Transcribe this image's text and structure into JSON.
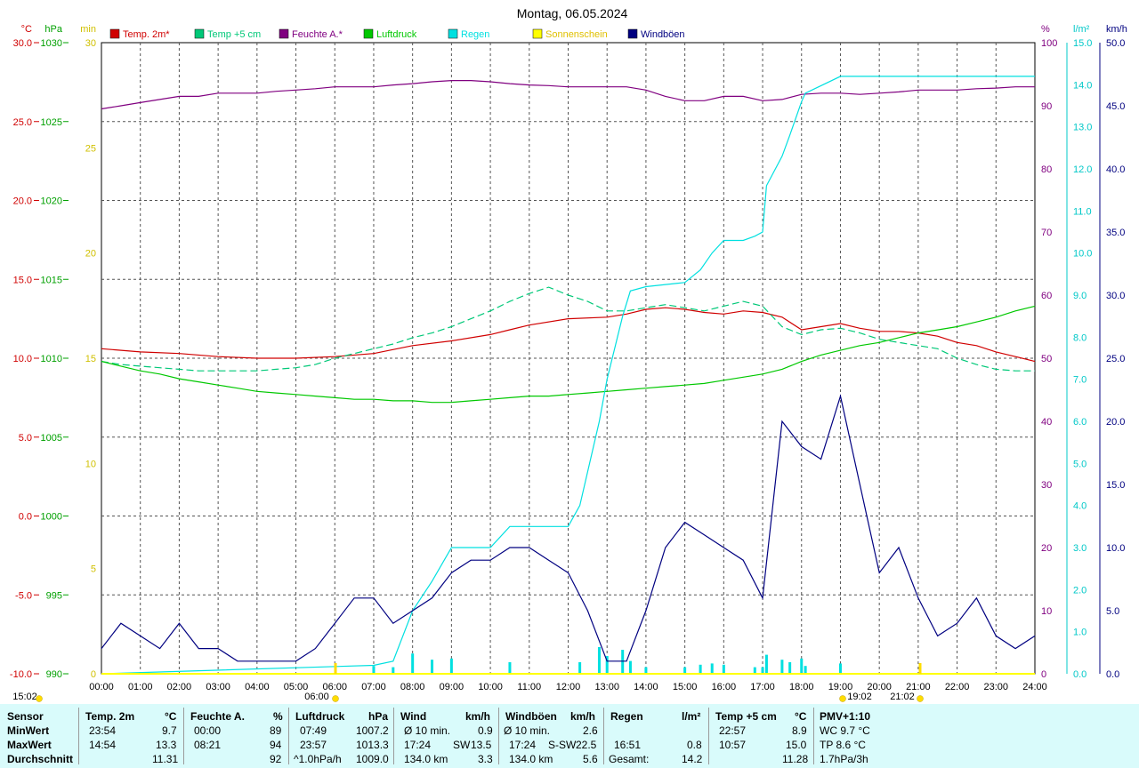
{
  "chart_data": {
    "type": "line",
    "title": "Montag, 06.05.2024",
    "x_ticks": [
      "00:00",
      "01:00",
      "02:00",
      "03:00",
      "04:00",
      "05:00",
      "06:00",
      "07:00",
      "08:00",
      "09:00",
      "10:00",
      "11:00",
      "12:00",
      "13:00",
      "14:00",
      "15:00",
      "16:00",
      "17:00",
      "18:00",
      "19:00",
      "20:00",
      "21:00",
      "22:00",
      "23:00",
      "24:00"
    ],
    "xlim": [
      0,
      24
    ],
    "grid": true,
    "legend_placement": "top",
    "axes": {
      "temp": {
        "unit": "°C",
        "color": "#d00000",
        "ylim": [
          -10,
          30
        ],
        "ticks": [
          "30.0",
          "25.0",
          "20.0",
          "15.0",
          "10.0",
          "5.0",
          "0.0",
          "-5.0",
          "-10.0"
        ]
      },
      "pressure": {
        "unit": "hPa",
        "color": "#00a000",
        "ylim": [
          990,
          1030
        ],
        "ticks": [
          "1030",
          "1025",
          "1020",
          "1015",
          "1010",
          "1005",
          "1000",
          "995",
          "990"
        ]
      },
      "sunshine": {
        "unit": "min",
        "color": "#d0c000",
        "ylim": [
          0,
          30
        ],
        "ticks": [
          "30",
          "25",
          "20",
          "15",
          "10",
          "5",
          "0"
        ]
      },
      "humidity": {
        "unit": "%",
        "color": "#800080",
        "ylim": [
          0,
          100
        ],
        "ticks": [
          "100",
          "90",
          "80",
          "70",
          "60",
          "50",
          "40",
          "30",
          "20",
          "10",
          "0"
        ]
      },
      "rain": {
        "unit": "l/m²",
        "color": "#00c8c8",
        "ylim": [
          0,
          15
        ],
        "ticks": [
          "15.0",
          "14.0",
          "13.0",
          "12.0",
          "11.0",
          "10.0",
          "9.0",
          "8.0",
          "7.0",
          "6.0",
          "5.0",
          "4.0",
          "3.0",
          "2.0",
          "1.0",
          "0.0"
        ]
      },
      "wind": {
        "unit": "km/h",
        "color": "#000080",
        "ylim": [
          0,
          50
        ],
        "ticks": [
          "50.0",
          "45.0",
          "40.0",
          "35.0",
          "30.0",
          "25.0",
          "20.0",
          "15.0",
          "10.0",
          "5.0",
          "0.0"
        ]
      }
    },
    "legend": [
      {
        "label": "Temp. 2m*",
        "color": "#d00000"
      },
      {
        "label": "Temp +5 cm",
        "color": "#00c878"
      },
      {
        "label": "Feuchte A.*",
        "color": "#800080"
      },
      {
        "label": "Luftdruck",
        "color": "#00c800"
      },
      {
        "label": "Regen",
        "color": "#00e0e0"
      },
      {
        "label": "Sonnenschein",
        "color": "#ffff00"
      },
      {
        "label": "Windböen",
        "color": "#000080"
      }
    ],
    "series": [
      {
        "name": "Temp. 2m*",
        "axis": "temp",
        "color": "#d00000",
        "x": [
          0,
          1,
          2,
          3,
          4,
          5,
          6,
          7,
          8,
          9,
          10,
          10.5,
          11,
          12,
          13,
          13.5,
          14,
          14.5,
          15,
          15.5,
          16,
          16.5,
          17,
          17.5,
          18,
          18.5,
          19,
          19.5,
          20,
          20.5,
          21,
          21.5,
          22,
          22.5,
          23,
          23.5,
          24
        ],
        "y": [
          10.6,
          10.4,
          10.3,
          10.1,
          10.0,
          10.0,
          10.1,
          10.3,
          10.8,
          11.1,
          11.5,
          11.8,
          12.1,
          12.5,
          12.6,
          12.8,
          13.1,
          13.2,
          13.1,
          12.9,
          12.8,
          13.0,
          12.9,
          12.6,
          11.8,
          12.0,
          12.2,
          11.9,
          11.7,
          11.7,
          11.6,
          11.4,
          11.0,
          10.8,
          10.4,
          10.1,
          9.8
        ]
      },
      {
        "name": "Temp +5 cm",
        "axis": "temp",
        "color": "#00c878",
        "x": [
          0,
          0.5,
          1,
          1.5,
          2,
          2.5,
          3,
          3.5,
          4,
          4.5,
          5,
          5.5,
          6,
          6.5,
          7,
          7.5,
          8,
          8.5,
          9,
          9.5,
          10,
          10.5,
          11,
          11.5,
          12,
          12.5,
          13,
          13.5,
          14,
          14.5,
          15,
          15.5,
          16,
          16.5,
          17,
          17.5,
          18,
          18.5,
          19,
          19.5,
          20,
          20.5,
          21,
          21.5,
          22,
          22.5,
          23,
          23.5,
          24
        ],
        "y": [
          9.8,
          9.6,
          9.5,
          9.4,
          9.3,
          9.2,
          9.2,
          9.2,
          9.2,
          9.3,
          9.4,
          9.6,
          10.0,
          10.3,
          10.6,
          10.9,
          11.3,
          11.6,
          12.0,
          12.5,
          13.0,
          13.6,
          14.1,
          14.5,
          14.0,
          13.6,
          13.0,
          13.0,
          13.2,
          13.4,
          13.2,
          13.0,
          13.3,
          13.6,
          13.3,
          12.0,
          11.5,
          11.8,
          11.9,
          11.6,
          11.2,
          11.0,
          10.8,
          10.6,
          10.0,
          9.6,
          9.3,
          9.2,
          9.2
        ]
      },
      {
        "name": "Feuchte A.*",
        "axis": "humidity",
        "color": "#800080",
        "x": [
          0,
          0.5,
          1,
          1.5,
          2,
          2.5,
          3,
          3.5,
          4,
          4.5,
          5,
          5.5,
          6,
          6.5,
          7,
          7.5,
          8,
          8.5,
          9,
          9.5,
          10,
          10.5,
          11,
          11.5,
          12,
          12.5,
          13,
          13.5,
          14,
          14.5,
          15,
          15.5,
          16,
          16.5,
          17,
          17.5,
          18,
          18.5,
          19,
          19.5,
          20,
          20.5,
          21,
          21.5,
          22,
          22.5,
          23,
          23.5,
          24
        ],
        "y": [
          89.5,
          90,
          90.5,
          91,
          91.5,
          91.5,
          92,
          92,
          92,
          92.3,
          92.5,
          92.7,
          93,
          93,
          93,
          93.3,
          93.5,
          93.8,
          94,
          94,
          93.8,
          93.5,
          93.3,
          93.2,
          93,
          93,
          93,
          93,
          92.5,
          91.5,
          90.8,
          90.8,
          91.5,
          91.5,
          90.8,
          91,
          91.8,
          92,
          92,
          91.8,
          92,
          92.2,
          92.5,
          92.5,
          92.5,
          92.7,
          92.8,
          93,
          93
        ]
      },
      {
        "name": "Luftdruck",
        "axis": "pressure",
        "color": "#00c800",
        "x": [
          0,
          0.5,
          1,
          1.5,
          2,
          2.5,
          3,
          3.5,
          4,
          4.5,
          5,
          5.5,
          6,
          6.5,
          7,
          7.5,
          8,
          8.5,
          9,
          9.5,
          10,
          10.5,
          11,
          11.5,
          12,
          12.5,
          13,
          13.5,
          14,
          14.5,
          15,
          15.5,
          16,
          16.5,
          17,
          17.5,
          18,
          18.5,
          19,
          19.5,
          20,
          20.5,
          21,
          21.5,
          22,
          22.5,
          23,
          23.5,
          24
        ],
        "y": [
          1009.8,
          1009.5,
          1009.2,
          1009.0,
          1008.7,
          1008.5,
          1008.3,
          1008.1,
          1007.9,
          1007.8,
          1007.7,
          1007.6,
          1007.5,
          1007.4,
          1007.4,
          1007.3,
          1007.3,
          1007.2,
          1007.2,
          1007.3,
          1007.4,
          1007.5,
          1007.6,
          1007.6,
          1007.7,
          1007.8,
          1007.9,
          1008.0,
          1008.1,
          1008.2,
          1008.3,
          1008.4,
          1008.6,
          1008.8,
          1009.0,
          1009.3,
          1009.8,
          1010.2,
          1010.5,
          1010.8,
          1011.0,
          1011.3,
          1011.6,
          1011.8,
          1012.0,
          1012.3,
          1012.6,
          1013.0,
          1013.3
        ]
      },
      {
        "name": "Regen",
        "axis": "rain",
        "color": "#00e0e0",
        "x": [
          0,
          7.0,
          7.5,
          8.0,
          8.5,
          9.0,
          10.0,
          10.5,
          11.0,
          12.0,
          12.3,
          12.8,
          13.0,
          13.4,
          13.6,
          14.0,
          15.0,
          15.4,
          15.7,
          16.0,
          16.5,
          16.8,
          17.0,
          17.1,
          17.5,
          17.7,
          18.0,
          18.1,
          19.0,
          24.0
        ],
        "y": [
          0,
          0.2,
          0.3,
          1.5,
          2.2,
          3.0,
          3.0,
          3.5,
          3.5,
          3.5,
          4.0,
          6.0,
          7.0,
          8.5,
          9.1,
          9.2,
          9.3,
          9.6,
          10.0,
          10.3,
          10.3,
          10.4,
          10.5,
          11.6,
          12.3,
          12.8,
          13.6,
          13.8,
          14.2,
          14.2
        ]
      },
      {
        "name": "Windböen",
        "axis": "wind",
        "color": "#000080",
        "x": [
          0,
          0.5,
          1,
          1.5,
          2,
          2.5,
          3,
          3.5,
          4,
          4.5,
          5,
          5.5,
          6,
          6.5,
          7,
          7.5,
          8,
          8.5,
          9,
          9.5,
          10,
          10.5,
          11,
          11.5,
          12,
          12.5,
          13,
          13.5,
          14,
          14.5,
          15,
          15.5,
          16,
          16.5,
          17,
          17.5,
          18,
          18.5,
          19,
          19.5,
          20,
          20.5,
          21,
          21.5,
          22,
          22.5,
          23,
          23.5,
          24
        ],
        "y": [
          2,
          4,
          3,
          2,
          4,
          2,
          2,
          1,
          1,
          1,
          1,
          2,
          4,
          6,
          6,
          4,
          5,
          6,
          8,
          9,
          9,
          10,
          10,
          9,
          8,
          5,
          1,
          1,
          5,
          10,
          12,
          11,
          10,
          9,
          6,
          20,
          18,
          17,
          22,
          15,
          8,
          10,
          6,
          3,
          4,
          6,
          3,
          2,
          3
        ]
      },
      {
        "name": "Sonnenschein",
        "axis": "sunshine",
        "color": "#ffff00",
        "x": [
          0,
          24
        ],
        "y": [
          0,
          0
        ]
      }
    ],
    "annotations": [
      "15:02",
      "06:00",
      "19:02",
      "21:02"
    ]
  },
  "stats": {
    "header": {
      "sensor": "Sensor",
      "temp": "Temp. 2m",
      "temp_unit": "°C",
      "hum": "Feuchte A.",
      "hum_unit": "%",
      "press": "Luftdruck",
      "press_unit": "hPa",
      "wind": "Wind",
      "wind_unit": "km/h",
      "gust": "Windböen",
      "gust_unit": "km/h",
      "rain": "Regen",
      "rain_unit": "l/m²",
      "t5": "Temp +5 cm",
      "t5_unit": "°C",
      "pmv": "PMV+1:10"
    },
    "rows": {
      "min": {
        "label": "MinWert",
        "temp_t": "23:54",
        "temp_v": "9.7",
        "hum_t": "00:00",
        "hum_v": "89",
        "press_t": "07:49",
        "press_v": "1007.2",
        "wind_t": "Ø 10 min.",
        "wind_v": "0.9",
        "gust_t": "Ø 10 min.",
        "gust_v": "2.6",
        "rain_t": "",
        "rain_v": "",
        "t5_t": "22:57",
        "t5_v": "8.9",
        "pmv": "WC 9.7 °C"
      },
      "max": {
        "label": "MaxWert",
        "temp_t": "14:54",
        "temp_v": "13.3",
        "hum_t": "08:21",
        "hum_v": "94",
        "press_t": "23:57",
        "press_v": "1013.3",
        "wind_t": "17:24",
        "wind_dir": "SW",
        "wind_v": "13.5",
        "gust_t": "17:24",
        "gust_dir": "S-SW",
        "gust_v": "22.5",
        "rain_t": "16:51",
        "rain_v": "0.8",
        "t5_t": "10:57",
        "t5_v": "15.0",
        "pmv": "TP 8.6 °C"
      },
      "avg": {
        "label": "Durchschnitt",
        "temp_v": "11.31",
        "hum_v": "92",
        "press_t": "^1.0hPa/h",
        "press_v": "1009.0",
        "wind_t": "134.0 km",
        "wind_v": "3.3",
        "gust_t": "134.0 km",
        "gust_v": "5.6",
        "rain_t": "Gesamt:",
        "rain_v": "14.2",
        "t5_v": "11.28",
        "pmv": "1.7hPa/3h"
      }
    }
  }
}
